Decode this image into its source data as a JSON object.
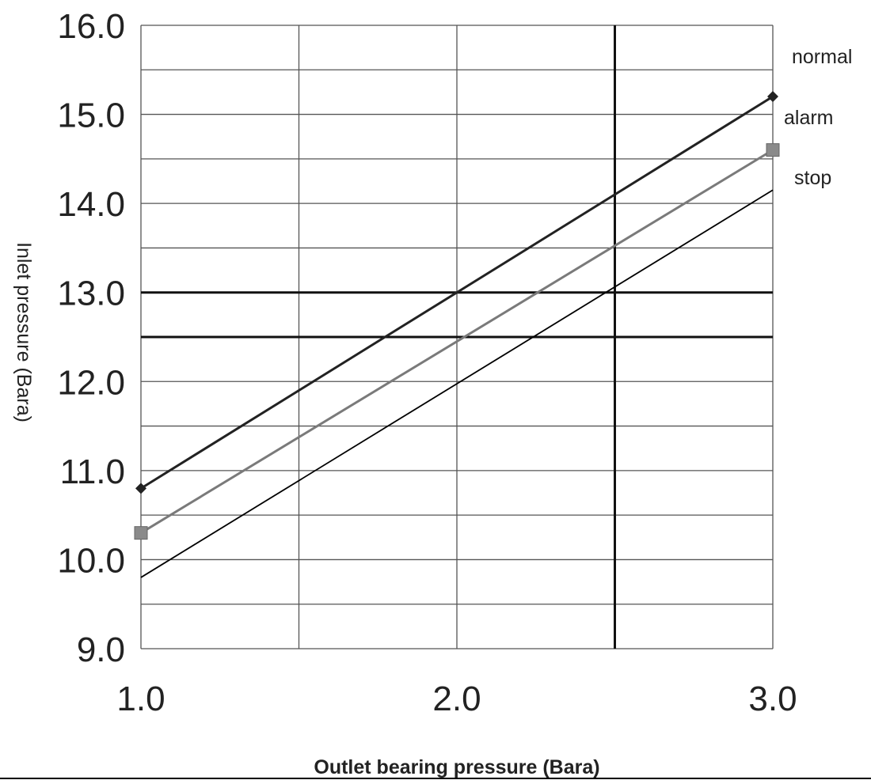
{
  "chart_data": {
    "type": "line",
    "xlabel": "Outlet bearing pressure (Bara)",
    "ylabel": "Inlet pressure (Bara)",
    "xlim": [
      1.0,
      3.0
    ],
    "ylim": [
      9.0,
      16.0
    ],
    "x_ticks": [
      "1.0",
      "2.0",
      "3.0"
    ],
    "y_ticks": [
      "9.0",
      "10.0",
      "11.0",
      "12.0",
      "13.0",
      "14.0",
      "15.0",
      "16.0"
    ],
    "x": [
      1.0,
      3.0
    ],
    "series": [
      {
        "name": "normal",
        "values": [
          10.8,
          15.2
        ],
        "color": "#222222",
        "marker": "diamond"
      },
      {
        "name": "alarm",
        "values": [
          10.3,
          14.6
        ],
        "color": "#7a7a7a",
        "marker": "square"
      },
      {
        "name": "stop",
        "values": [
          9.8,
          14.15
        ],
        "color": "#000000",
        "marker": "none"
      }
    ],
    "reference_lines": {
      "horizontal": [
        13.0,
        12.5
      ],
      "vertical": [
        2.5
      ]
    },
    "grid": true,
    "legend": "right"
  }
}
